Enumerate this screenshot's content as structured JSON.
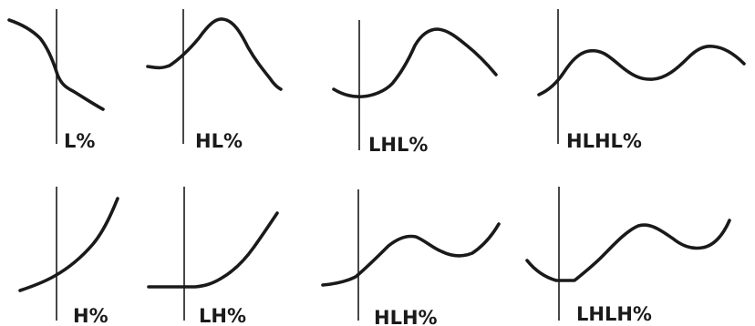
{
  "figure": {
    "panels": [
      {
        "label": "L%"
      },
      {
        "label": "HL%"
      },
      {
        "label": "LHL%"
      },
      {
        "label": "HLHL%"
      },
      {
        "label": "H%"
      },
      {
        "label": "LH%"
      },
      {
        "label": "HLH%"
      },
      {
        "label": "LHLH%"
      }
    ]
  },
  "style": {
    "ink": "#1a1a1a",
    "background": "#ffffff"
  }
}
